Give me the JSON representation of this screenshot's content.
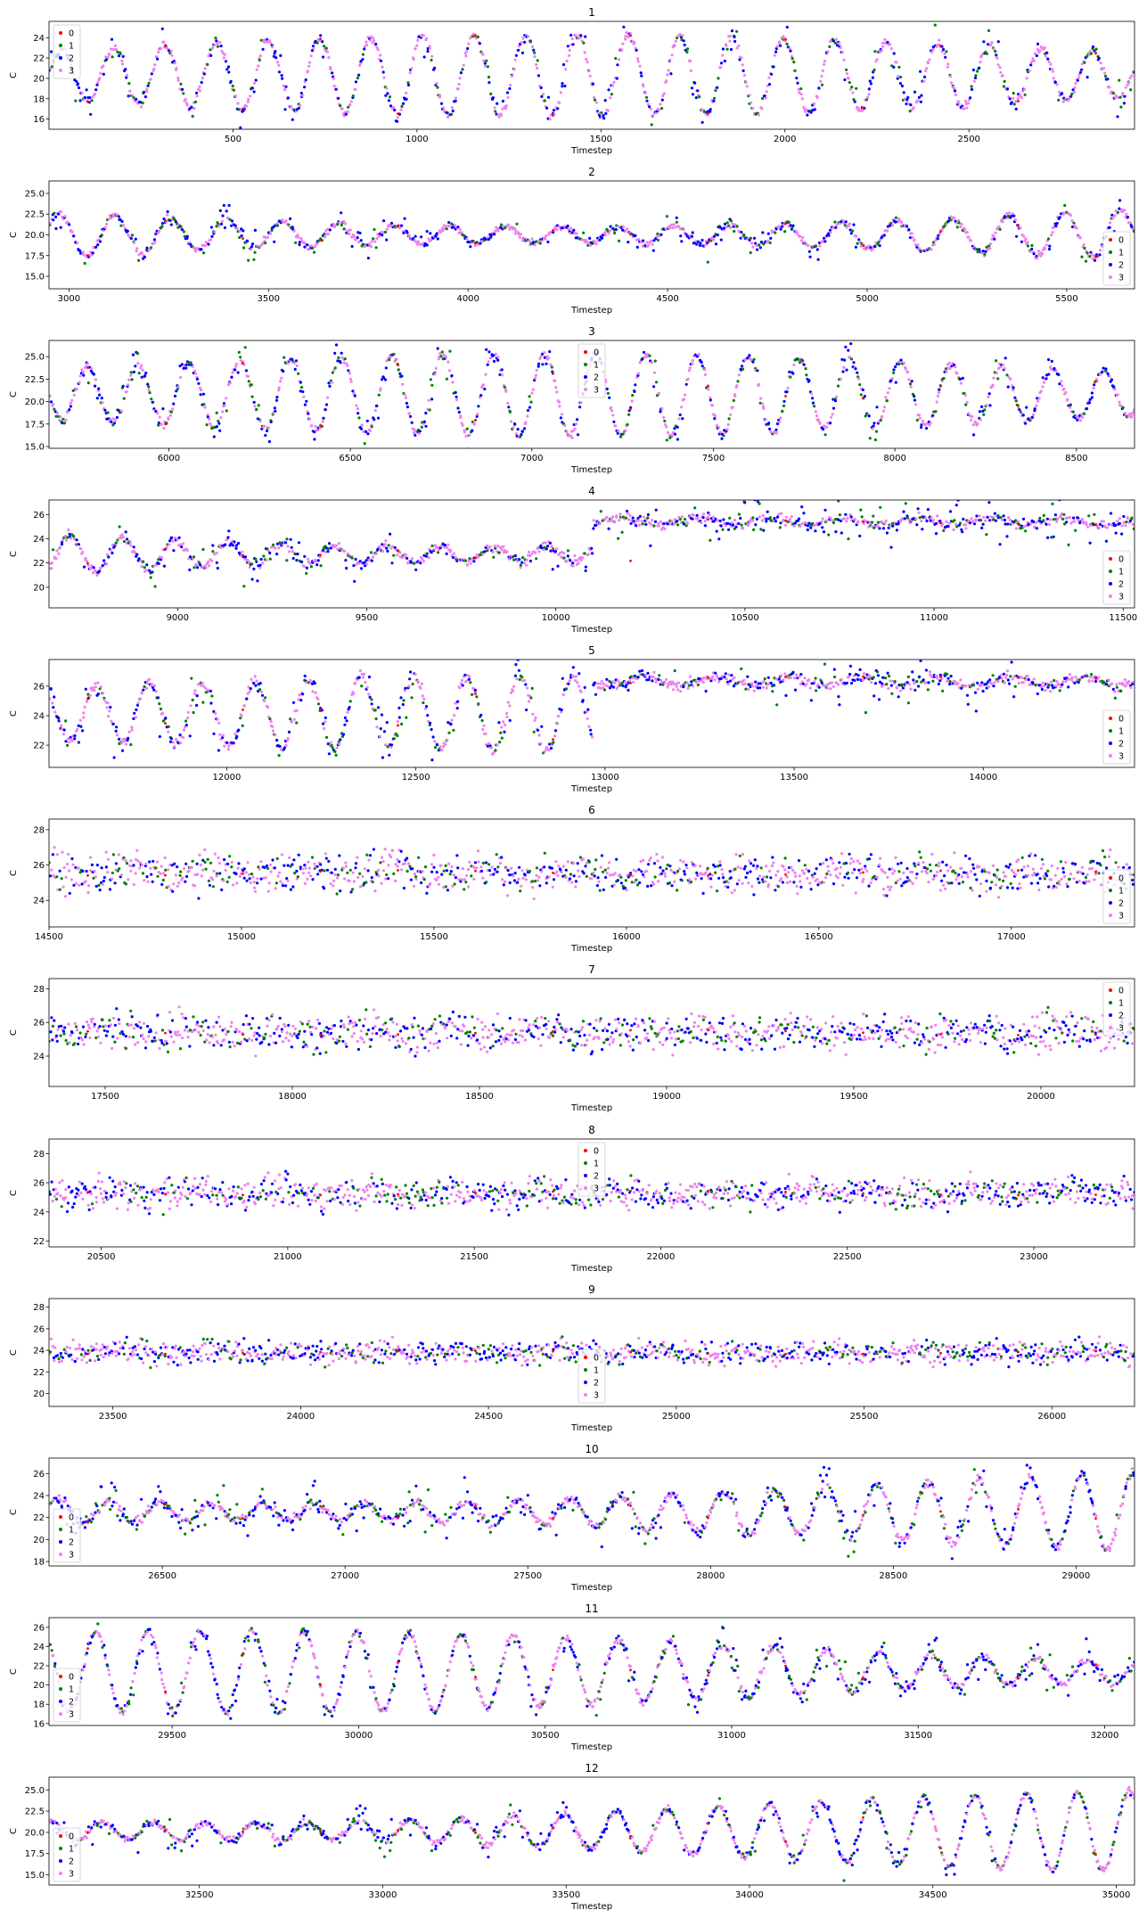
{
  "series_styles": [
    {
      "name": "0",
      "color": "#ff0000"
    },
    {
      "name": "1",
      "color": "#008000"
    },
    {
      "name": "2",
      "color": "#0000ff"
    },
    {
      "name": "3",
      "color": "#ee82ee"
    }
  ],
  "chart_data": [
    {
      "type": "scatter",
      "title": "1",
      "xlabel": "Timestep",
      "ylabel": "C",
      "xlim": [
        0,
        2950
      ],
      "ylim": [
        15,
        25.6
      ],
      "xticks": [
        500,
        1000,
        1500,
        2000,
        2500
      ],
      "yticks": [
        16,
        18,
        20,
        22,
        24
      ],
      "ytick_labels": [
        "16",
        "18",
        "20",
        "22",
        "24"
      ],
      "legend_loc": "upper left",
      "series": [
        "0",
        "1",
        "2",
        "3"
      ]
    },
    {
      "type": "scatter",
      "title": "2",
      "xlabel": "Timestep",
      "ylabel": "C",
      "xlim": [
        2950,
        5670
      ],
      "ylim": [
        13.5,
        26.5
      ],
      "xticks": [
        3000,
        3500,
        4000,
        4500,
        5000,
        5500
      ],
      "yticks": [
        15,
        17.5,
        20,
        22.5,
        25
      ],
      "ytick_labels": [
        "15.0",
        "17.5",
        "20.0",
        "22.5",
        "25.0"
      ],
      "legend_loc": "lower right",
      "series": [
        "0",
        "1",
        "2",
        "3"
      ]
    },
    {
      "type": "scatter",
      "title": "3",
      "xlabel": "Timestep",
      "ylabel": "C",
      "xlim": [
        5670,
        8660
      ],
      "ylim": [
        14.8,
        26.8
      ],
      "xticks": [
        6000,
        6500,
        7000,
        7500,
        8000,
        8500
      ],
      "yticks": [
        15,
        17.5,
        20,
        22.5,
        25
      ],
      "ytick_labels": [
        "15.0",
        "17.5",
        "20.0",
        "22.5",
        "25.0"
      ],
      "legend_loc": "upper center",
      "series": [
        "0",
        "1",
        "2",
        "3"
      ]
    },
    {
      "type": "scatter",
      "title": "4",
      "xlabel": "Timestep",
      "ylabel": "C",
      "xlim": [
        8660,
        11530
      ],
      "ylim": [
        18.3,
        27.2
      ],
      "xticks": [
        9000,
        9500,
        10000,
        10500,
        11000,
        11500
      ],
      "yticks": [
        20,
        22,
        24,
        26
      ],
      "ytick_labels": [
        "20",
        "22",
        "24",
        "26"
      ],
      "legend_loc": "lower right",
      "series": [
        "0",
        "1",
        "2",
        "3"
      ]
    },
    {
      "type": "scatter",
      "title": "5",
      "xlabel": "Timestep",
      "ylabel": "C",
      "xlim": [
        11530,
        14400
      ],
      "ylim": [
        20.5,
        27.8
      ],
      "xticks": [
        12000,
        12500,
        13000,
        13500,
        14000
      ],
      "yticks": [
        22,
        24,
        26
      ],
      "ytick_labels": [
        "22",
        "24",
        "26"
      ],
      "legend_loc": "lower right",
      "series": [
        "0",
        "1",
        "2",
        "3"
      ]
    },
    {
      "type": "scatter",
      "title": "6",
      "xlabel": "Timestep",
      "ylabel": "C",
      "xlim": [
        14500,
        17320
      ],
      "ylim": [
        22.5,
        28.6
      ],
      "xticks": [
        14500,
        15000,
        15500,
        16000,
        16500,
        17000
      ],
      "yticks": [
        24,
        26,
        28
      ],
      "ytick_labels": [
        "24",
        "26",
        "28"
      ],
      "legend_loc": "lower right",
      "series": [
        "0",
        "1",
        "2",
        "3"
      ]
    },
    {
      "type": "scatter",
      "title": "7",
      "xlabel": "Timestep",
      "ylabel": "C",
      "xlim": [
        17350,
        20250
      ],
      "ylim": [
        22.2,
        28.6
      ],
      "xticks": [
        17500,
        18000,
        18500,
        19000,
        19500,
        20000
      ],
      "yticks": [
        24,
        26,
        28
      ],
      "ytick_labels": [
        "24",
        "26",
        "28"
      ],
      "legend_loc": "upper right",
      "series": [
        "0",
        "1",
        "2",
        "3"
      ]
    },
    {
      "type": "scatter",
      "title": "8",
      "xlabel": "Timestep",
      "ylabel": "C",
      "xlim": [
        20360,
        23270
      ],
      "ylim": [
        21.6,
        29
      ],
      "xticks": [
        20500,
        21000,
        21500,
        22000,
        22500,
        23000
      ],
      "yticks": [
        22,
        24,
        26,
        28
      ],
      "ytick_labels": [
        "22",
        "24",
        "26",
        "28"
      ],
      "legend_loc": "upper center",
      "series": [
        "0",
        "1",
        "2",
        "3"
      ]
    },
    {
      "type": "scatter",
      "title": "9",
      "xlabel": "Timestep",
      "ylabel": "C",
      "xlim": [
        23330,
        26220
      ],
      "ylim": [
        18.8,
        28.8
      ],
      "xticks": [
        23500,
        24000,
        24500,
        25000,
        25500,
        26000
      ],
      "yticks": [
        20,
        22,
        24,
        26,
        28
      ],
      "ytick_labels": [
        "20",
        "22",
        "24",
        "26",
        "28"
      ],
      "legend_loc": "lower center",
      "series": [
        "0",
        "1",
        "2",
        "3"
      ]
    },
    {
      "type": "scatter",
      "title": "10",
      "xlabel": "Timestep",
      "ylabel": "C",
      "xlim": [
        26190,
        29160
      ],
      "ylim": [
        17.6,
        27.4
      ],
      "xticks": [
        26500,
        27000,
        27500,
        28000,
        28500,
        29000
      ],
      "yticks": [
        18,
        20,
        22,
        24,
        26
      ],
      "ytick_labels": [
        "18",
        "20",
        "22",
        "24",
        "26"
      ],
      "legend_loc": "lower left",
      "series": [
        "0",
        "1",
        "2",
        "3"
      ]
    },
    {
      "type": "scatter",
      "title": "11",
      "xlabel": "Timestep",
      "ylabel": "C",
      "xlim": [
        29170,
        32080
      ],
      "ylim": [
        15.8,
        27
      ],
      "xticks": [
        29500,
        30000,
        30500,
        31000,
        31500,
        32000
      ],
      "yticks": [
        16,
        18,
        20,
        22,
        24,
        26
      ],
      "ytick_labels": [
        "16",
        "18",
        "20",
        "22",
        "24",
        "26"
      ],
      "legend_loc": "lower left",
      "series": [
        "0",
        "1",
        "2",
        "3"
      ]
    },
    {
      "type": "scatter",
      "title": "12",
      "xlabel": "Timestep",
      "ylabel": "C",
      "xlim": [
        32090,
        35050
      ],
      "ylim": [
        13.8,
        26.5
      ],
      "xticks": [
        32500,
        33000,
        33500,
        34000,
        34500,
        35000
      ],
      "yticks": [
        15,
        17.5,
        20,
        22.5,
        25
      ],
      "ytick_labels": [
        "15.0",
        "17.5",
        "20.0",
        "22.5",
        "25.0"
      ],
      "legend_loc": "lower left",
      "series": [
        "0",
        "1",
        "2",
        "3"
      ]
    }
  ]
}
